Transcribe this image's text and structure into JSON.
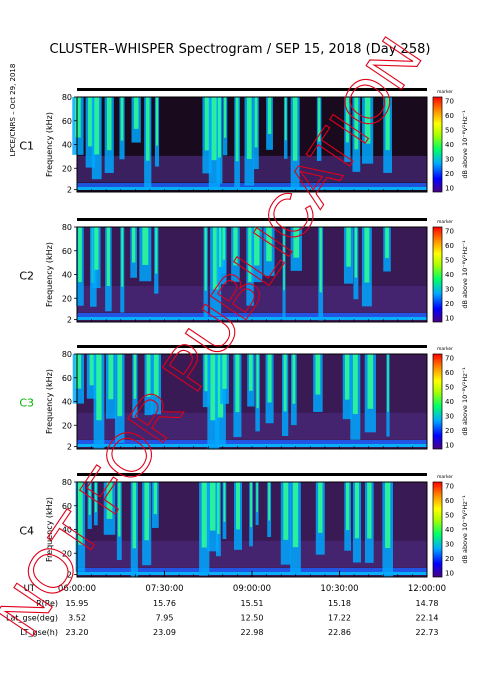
{
  "title": "CLUSTER–WHISPER Spectrogram / SEP 15, 2018 (Day 258)",
  "credit": "LPCE/CNRS – Oct 29, 2018",
  "watermark": "NOT FOR PUBLICATION",
  "colors": {
    "frame": "#000000",
    "label_c3": "#00b000"
  },
  "chart_data": {
    "type": "heatmap",
    "panels": [
      {
        "label": "C1",
        "ylabel": "Frequency (kHz)",
        "yticks": [
          "80",
          "60",
          "40",
          "20",
          "2"
        ],
        "ylim": [
          2,
          80
        ],
        "color_label": "#000000"
      },
      {
        "label": "C2",
        "ylabel": "Frequency (kHz)",
        "yticks": [
          "80",
          "60",
          "40",
          "20",
          "2"
        ],
        "ylim": [
          2,
          80
        ],
        "color_label": "#000000"
      },
      {
        "label": "C3",
        "ylabel": "Frequency (kHz)",
        "yticks": [
          "80",
          "60",
          "40",
          "20",
          "2"
        ],
        "ylim": [
          2,
          80
        ],
        "color_label": "#00b000"
      },
      {
        "label": "C4",
        "ylabel": "Frequency (kHz)",
        "yticks": [
          "80",
          "60",
          "40",
          "20",
          "2"
        ],
        "ylim": [
          2,
          80
        ],
        "color_label": "#000000"
      }
    ],
    "colorbar": {
      "label": "dB above 10⁻⁸V²Hz⁻¹",
      "header": "marker",
      "ticks": [
        "70",
        "60",
        "50",
        "40",
        "30",
        "20",
        "10"
      ],
      "range": [
        10,
        70
      ],
      "colors": [
        "#4b0082",
        "#0000ff",
        "#00aaff",
        "#00ff66",
        "#aaff00",
        "#ffff00",
        "#ff8800",
        "#ff0000"
      ]
    },
    "x_axis": {
      "label": "UT",
      "ticks": [
        "06:00:00",
        "07:30:00",
        "09:00:00",
        "10:30:00",
        "12:00:00"
      ],
      "range": [
        "06:00:00",
        "12:00:00"
      ]
    },
    "ephemeris": [
      {
        "label": "R(Re)",
        "values": [
          "15.95",
          "15.76",
          "15.51",
          "15.18",
          "14.78"
        ]
      },
      {
        "label": "Lat_gse(deg)",
        "values": [
          "3.52",
          "7.95",
          "12.50",
          "17.22",
          "22.14"
        ]
      },
      {
        "label": "LT_gse(h)",
        "values": [
          "23.20",
          "23.09",
          "22.98",
          "22.86",
          "22.73"
        ]
      }
    ],
    "emission_bursts_ut": [
      6.05,
      6.25,
      6.35,
      6.55,
      6.75,
      7.0,
      7.2,
      7.35,
      8.2,
      8.35,
      8.45,
      8.55,
      8.75,
      8.95,
      9.1,
      9.3,
      9.55,
      9.75,
      10.15,
      10.65,
      10.8,
      11.0,
      11.3
    ]
  }
}
